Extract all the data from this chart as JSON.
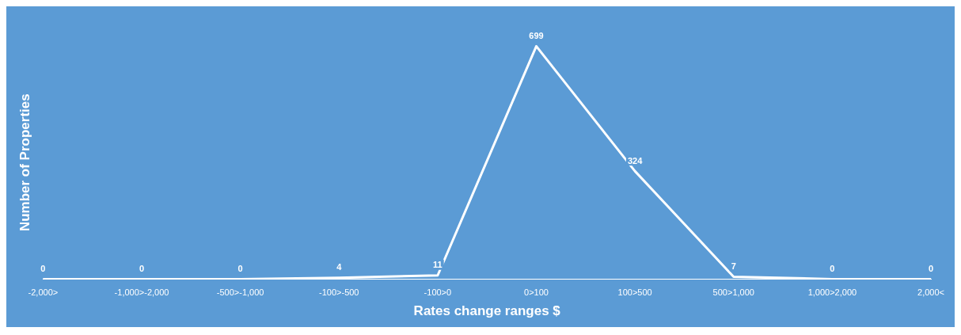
{
  "chart_data": {
    "type": "line",
    "xlabel": "Rates change ranges $",
    "ylabel": "Number of Properties",
    "categories": [
      "-2,000>",
      "-1,000>-2,000",
      "-500>-1,000",
      "-100>-500",
      "-100>0",
      "0>100",
      "100>500",
      "500>1,000",
      "1,000>2,000",
      "2,000<"
    ],
    "series": [
      {
        "color": "#ffffff",
        "values": [
          0,
          0,
          0,
          4,
          11,
          699,
          324,
          7,
          0,
          0
        ]
      }
    ],
    "data_labels": true,
    "tick_labels": "x",
    "grid": false,
    "legend": false
  }
}
